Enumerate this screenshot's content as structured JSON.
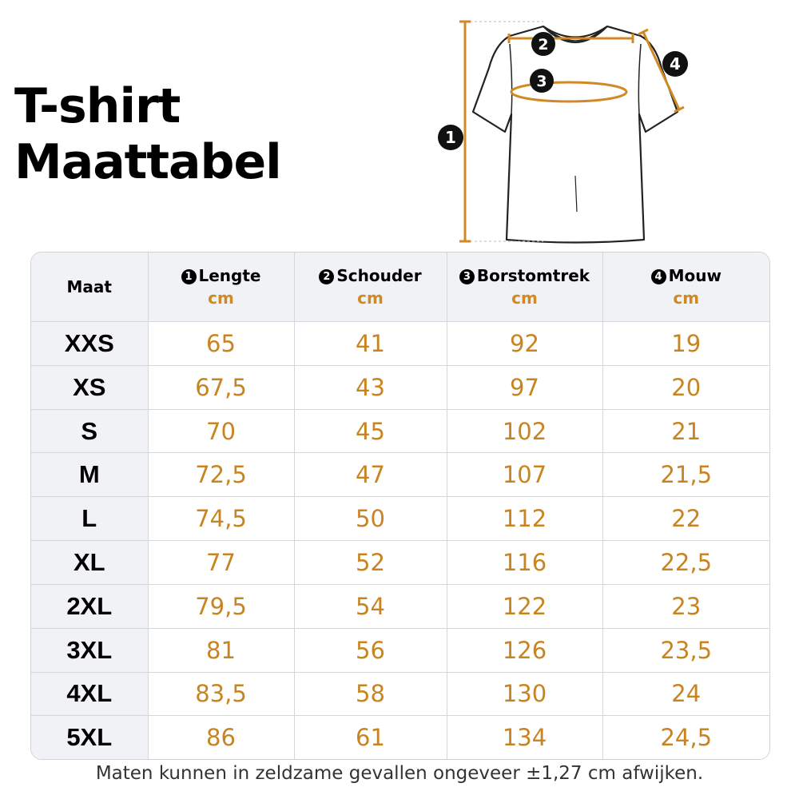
{
  "title": {
    "line1": "T-shirt",
    "line2": "Maattabel"
  },
  "diagram": {
    "markers": [
      "1",
      "2",
      "3",
      "4"
    ],
    "icon": "t-shirt-outline-icon",
    "measure_color": "#d08a25"
  },
  "table": {
    "headers": {
      "maat": "Maat",
      "columns": [
        {
          "num": "1",
          "name": "Lengte",
          "unit": "cm"
        },
        {
          "num": "2",
          "name": "Schouder",
          "unit": "cm"
        },
        {
          "num": "3",
          "name": "Borstomtrek",
          "unit": "cm"
        },
        {
          "num": "4",
          "name": "Mouw",
          "unit": "cm"
        }
      ]
    },
    "rows": [
      {
        "size": "XXS",
        "values": [
          "65",
          "41",
          "92",
          "19"
        ]
      },
      {
        "size": "XS",
        "values": [
          "67,5",
          "43",
          "97",
          "20"
        ]
      },
      {
        "size": "S",
        "values": [
          "70",
          "45",
          "102",
          "21"
        ]
      },
      {
        "size": "M",
        "values": [
          "72,5",
          "47",
          "107",
          "21,5"
        ]
      },
      {
        "size": "L",
        "values": [
          "74,5",
          "50",
          "112",
          "22"
        ]
      },
      {
        "size": "XL",
        "values": [
          "77",
          "52",
          "116",
          "22,5"
        ]
      },
      {
        "size": "2XL",
        "values": [
          "79,5",
          "54",
          "122",
          "23"
        ]
      },
      {
        "size": "3XL",
        "values": [
          "81",
          "56",
          "126",
          "23,5"
        ]
      },
      {
        "size": "4XL",
        "values": [
          "83,5",
          "58",
          "130",
          "24"
        ]
      },
      {
        "size": "5XL",
        "values": [
          "86",
          "61",
          "134",
          "24,5"
        ]
      }
    ],
    "value_color": "#c88420"
  },
  "footnote": "Maten kunnen in zeldzame gevallen ongeveer ±1,27 cm afwijken."
}
